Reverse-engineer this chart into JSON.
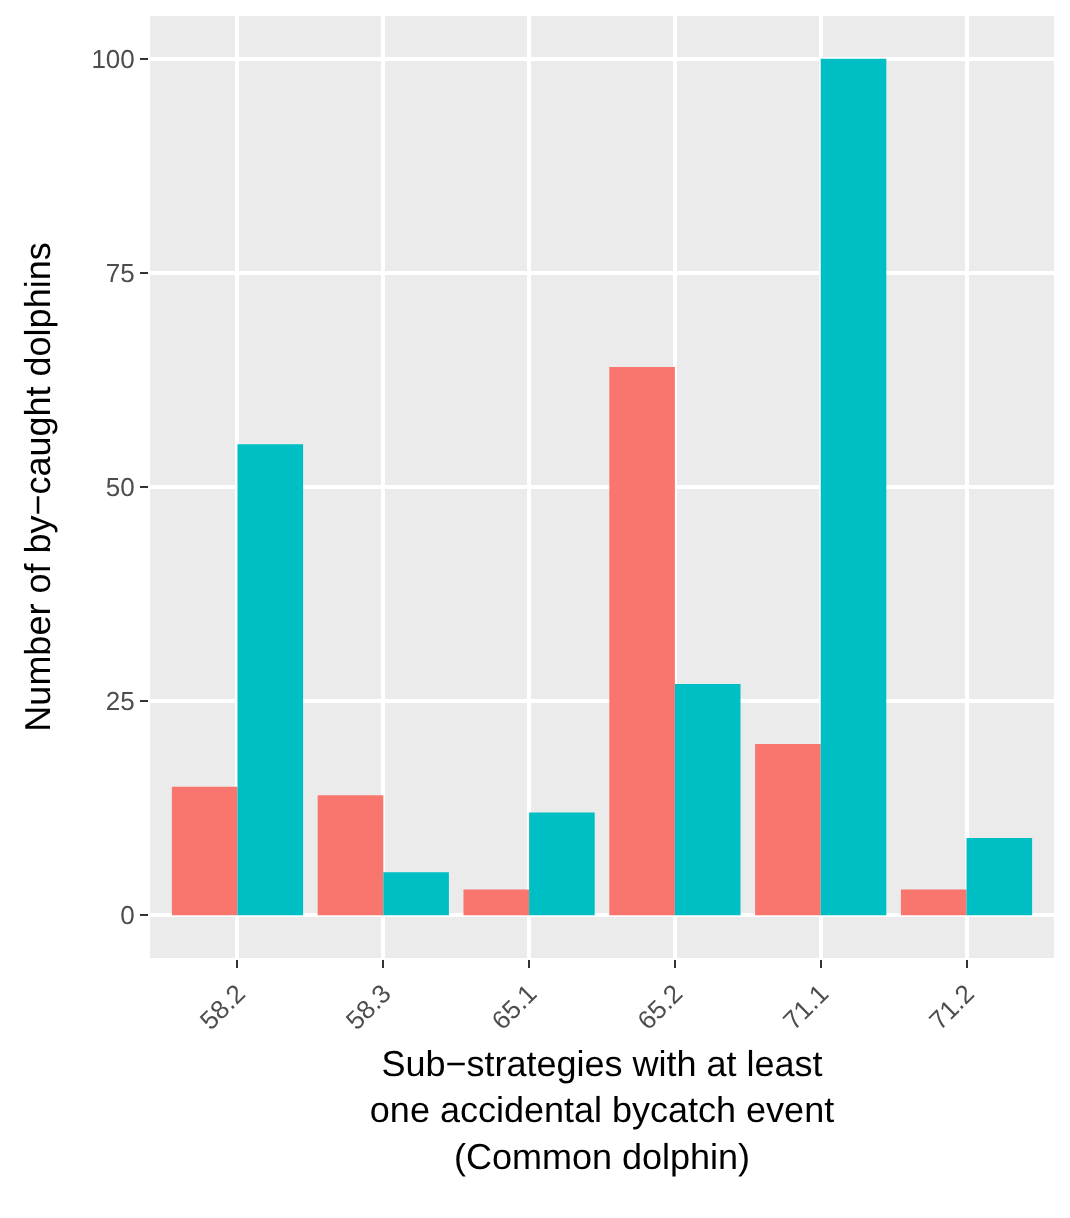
{
  "chart_data": {
    "type": "bar",
    "xlabel": "Sub−strategies with at least\none accidental bycatch event\n(Common dolphin)",
    "ylabel": "Number of by−caught dolphins",
    "categories": [
      "58.2",
      "58.3",
      "65.1",
      "65.2",
      "71.1",
      "71.2"
    ],
    "series": [
      {
        "color": "#f8766d",
        "values": [
          15,
          14,
          3,
          64,
          20,
          3
        ]
      },
      {
        "color": "#00bfc4",
        "values": [
          55,
          5,
          12,
          27,
          100,
          9
        ]
      }
    ],
    "ylim": [
      -5,
      105
    ],
    "yticks": [
      0,
      25,
      50,
      75,
      100
    ],
    "grid": true
  }
}
